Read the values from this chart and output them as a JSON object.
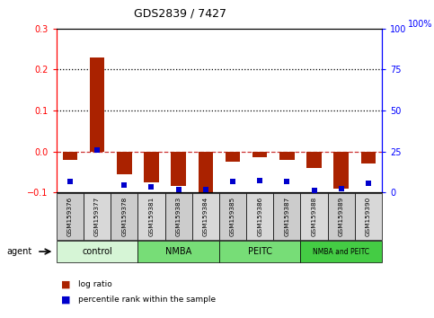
{
  "title": "GDS2839 / 7427",
  "samples": [
    "GSM159376",
    "GSM159377",
    "GSM159378",
    "GSM159381",
    "GSM159383",
    "GSM159384",
    "GSM159385",
    "GSM159386",
    "GSM159387",
    "GSM159388",
    "GSM159389",
    "GSM159390"
  ],
  "log_ratio": [
    -0.02,
    0.23,
    -0.055,
    -0.075,
    -0.085,
    -0.108,
    -0.025,
    -0.015,
    -0.02,
    -0.04,
    -0.09,
    -0.03
  ],
  "pct_rank": [
    6.5,
    26.0,
    4.5,
    3.5,
    1.5,
    1.8,
    6.5,
    7.0,
    6.5,
    1.2,
    2.5,
    5.5
  ],
  "groups": [
    {
      "label": "control",
      "start": 0,
      "end": 3,
      "color": "#d6f5d6"
    },
    {
      "label": "NMBA",
      "start": 3,
      "end": 6,
      "color": "#77dd77"
    },
    {
      "label": "PEITC",
      "start": 6,
      "end": 9,
      "color": "#77dd77"
    },
    {
      "label": "NMBA and PEITC",
      "start": 9,
      "end": 12,
      "color": "#44cc44"
    }
  ],
  "ylim_left": [
    -0.1,
    0.3
  ],
  "ylim_right": [
    0,
    100
  ],
  "yticks_left": [
    -0.1,
    0.0,
    0.1,
    0.2,
    0.3
  ],
  "yticks_right": [
    0,
    25,
    50,
    75,
    100
  ],
  "bar_color": "#aa2200",
  "dot_color": "#0000cc",
  "zero_line_color": "#cc3333",
  "bg_color": "#ffffff",
  "agent_label": "agent",
  "figsize": [
    4.83,
    3.54
  ],
  "dpi": 100
}
